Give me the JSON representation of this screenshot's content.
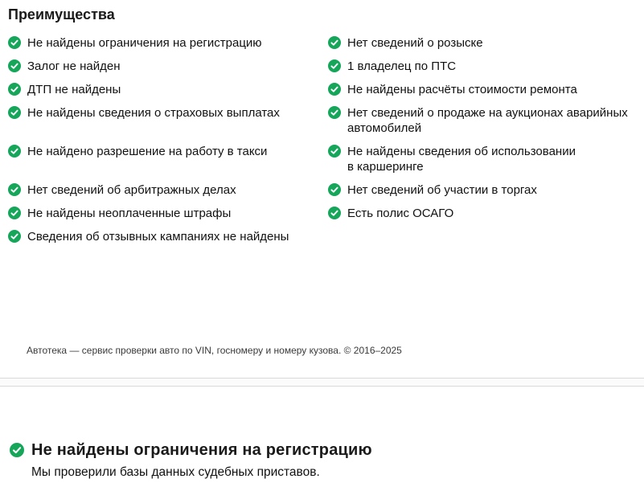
{
  "colors": {
    "check_green": "#15a65a",
    "divider": "#d9d9d9"
  },
  "advantages": {
    "title": "Преимущества",
    "rows": [
      {
        "left": "Не найдены ограничения на регистрацию",
        "right": "Нет сведений о розыске"
      },
      {
        "left": "Залог не найден",
        "right": "1 владелец по ПТС"
      },
      {
        "left": "ДТП не найдены",
        "right": "Не найдены расчёты стоимости ремонта"
      },
      {
        "left": "Не найдены сведения о страховых выплатах",
        "right": "Нет сведений о продаже на аукционах аварийных автомобилей"
      },
      {
        "left": "Не найдено разрешение на работу в такси",
        "right": "Не найдены сведения об использовании в каршеринге"
      },
      {
        "left": "Нет сведений об арбитражных делах",
        "right": "Нет сведений об участии в торгах"
      },
      {
        "left": "Не найдены неоплаченные штрафы",
        "right": "Есть полис ОСАГО"
      },
      {
        "left": "Сведения об отзывных кампаниях не найдены",
        "right": ""
      }
    ]
  },
  "footer": {
    "copyright": "Автотека — сервис проверки авто по VIN, госномеру и номеру кузова. © 2016–2025"
  },
  "detail_section": {
    "title": "Не найдены ограничения на регистрацию",
    "description": "Мы проверили базы данных судебных приставов."
  }
}
